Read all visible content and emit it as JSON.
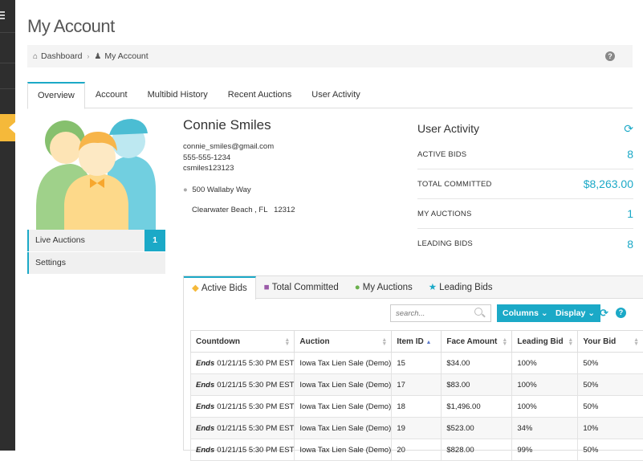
{
  "page": {
    "title": "My Account"
  },
  "breadcrumb": {
    "items": [
      "Dashboard",
      "My Account"
    ],
    "help": "?"
  },
  "tabs": [
    "Overview",
    "Account",
    "Multibid History",
    "Recent Auctions",
    "User Activity"
  ],
  "sidebar": {
    "items": [
      {
        "label": "Live Auctions",
        "badge": "1"
      },
      {
        "label": "Settings"
      }
    ]
  },
  "profile": {
    "name": "Connie Smiles",
    "email": "connie_smiles@gmail.com",
    "phone": "555-555-1234",
    "username": "csmiles123123",
    "street": "500 Wallaby Way",
    "city_line": "Clearwater Beach , FL   12312"
  },
  "activity": {
    "title": "User Activity",
    "rows": [
      {
        "label": "ACTIVE BIDS",
        "value": "8"
      },
      {
        "label": "TOTAL COMMITTED",
        "value": "$8,263.00"
      },
      {
        "label": "MY AUCTIONS",
        "value": "1"
      },
      {
        "label": "LEADING BIDS",
        "value": "8"
      }
    ]
  },
  "bids_panel": {
    "tabs": [
      "Active Bids",
      "Total Committed",
      "My Auctions",
      "Leading Bids"
    ],
    "search_placeholder": "search...",
    "columns_label": "Columns",
    "display_label": "Display",
    "headers": [
      "Countdown",
      "Auction",
      "Item ID",
      "Face Amount",
      "Leading Bid",
      "Your Bid"
    ],
    "rows": [
      {
        "ends": "Ends",
        "countdown": "01/21/15 5:30 PM EST",
        "auction": "Iowa Tax Lien Sale (Demo)",
        "item": "15",
        "face": "$34.00",
        "leading": "100%",
        "yours": "50%"
      },
      {
        "ends": "Ends",
        "countdown": "01/21/15 5:30 PM EST",
        "auction": "Iowa Tax Lien Sale (Demo)",
        "item": "17",
        "face": "$83.00",
        "leading": "100%",
        "yours": "50%"
      },
      {
        "ends": "Ends",
        "countdown": "01/21/15 5:30 PM EST",
        "auction": "Iowa Tax Lien Sale (Demo)",
        "item": "18",
        "face": "$1,496.00",
        "leading": "100%",
        "yours": "50%"
      },
      {
        "ends": "Ends",
        "countdown": "01/21/15 5:30 PM EST",
        "auction": "Iowa Tax Lien Sale (Demo)",
        "item": "19",
        "face": "$523.00",
        "leading": "34%",
        "yours": "10%"
      },
      {
        "ends": "Ends",
        "countdown": "01/21/15 5:30 PM EST",
        "auction": "Iowa Tax Lien Sale (Demo)",
        "item": "20",
        "face": "$828.00",
        "leading": "99%",
        "yours": "50%"
      }
    ]
  },
  "colors": {
    "accent": "#1ba9c7",
    "sidebar": "#2e2e2e",
    "highlight": "#f5b93a"
  }
}
